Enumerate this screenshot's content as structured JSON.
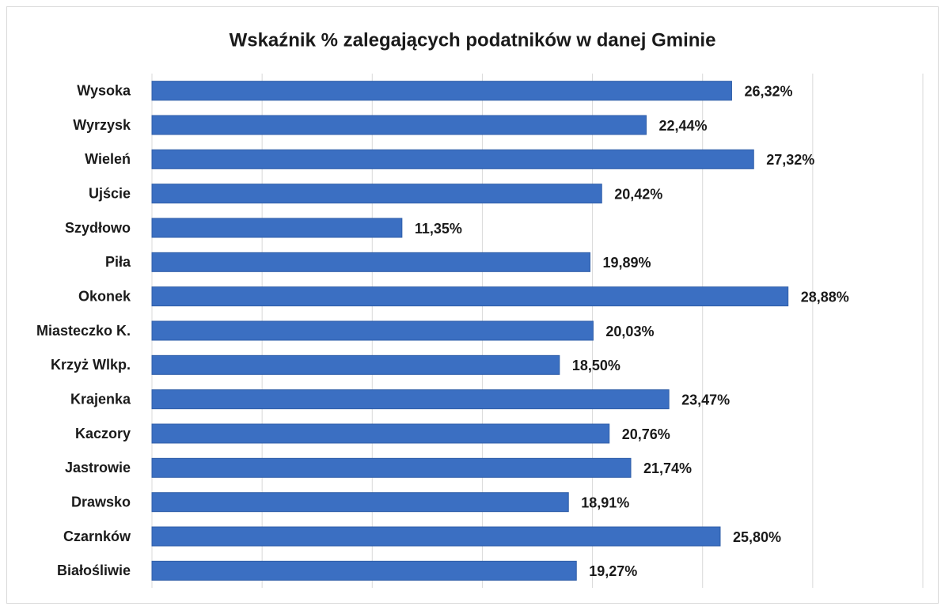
{
  "chart_data": {
    "type": "bar",
    "orientation": "horizontal",
    "title": "Wskaźnik % zalegających podatników w danej  Gminie",
    "categories": [
      "Wysoka",
      "Wyrzysk",
      "Wieleń",
      "Ujście",
      "Szydłowo",
      "Piła",
      "Okonek",
      "Miasteczko K.",
      "Krzyż Wlkp.",
      "Krajenka",
      "Kaczory",
      "Jastrowie",
      "Drawsko",
      "Czarnków",
      "Białośliwie"
    ],
    "values": [
      26.32,
      22.44,
      27.32,
      20.42,
      11.35,
      19.89,
      28.88,
      20.03,
      18.5,
      23.47,
      20.76,
      21.74,
      18.91,
      25.8,
      19.27
    ],
    "value_labels": [
      "26,32%",
      "22,44%",
      "27,32%",
      "20,42%",
      "11,35%",
      "19,89%",
      "28,88%",
      "20,03%",
      "18,50%",
      "23,47%",
      "20,76%",
      "21,74%",
      "18,91%",
      "25,80%",
      "19,27%"
    ],
    "color": "#3b6fc2",
    "xlim": [
      0,
      35
    ],
    "xticks": [
      0,
      5,
      10,
      15,
      20,
      25,
      30,
      35
    ],
    "grid": true
  }
}
